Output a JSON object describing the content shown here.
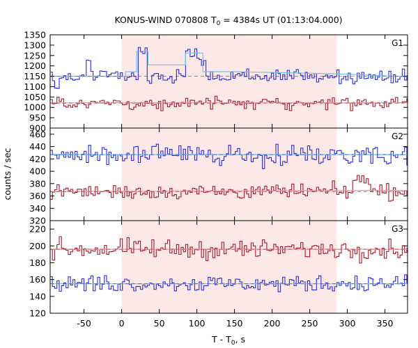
{
  "chart_data": {
    "type": "line",
    "title": {
      "prefix": "KONUS-WIND 070808 T",
      "sub": "0",
      "suffix": " = 4384s UT (01:13:04.000)"
    },
    "xlabel": {
      "prefix": "T - T",
      "sub": "0",
      "suffix": ", s"
    },
    "ylabel": "counts / sec",
    "xlim": [
      -95,
      380
    ],
    "xticks": [
      "-50",
      "0",
      "50",
      "100",
      "150",
      "200",
      "250",
      "300",
      "350"
    ],
    "highlight_interval": [
      0,
      286
    ],
    "highlight_color": "#fde8e8",
    "bin_width": 3,
    "panels": [
      {
        "label": "G1",
        "ylim": [
          900,
          1350
        ],
        "yticks": [
          "900",
          "950",
          "1000",
          "1050",
          "1100",
          "1150",
          "1200",
          "1250",
          "1300",
          "1350"
        ],
        "series": [
          {
            "color": "#2b2bd6",
            "background": 1150,
            "amplitude": 30,
            "features": [
              {
                "x": [
                  -48,
                  -41
                ],
                "y": 1225
              },
              {
                "x": [
                  22,
                  34
                ],
                "y": 1285
              },
              {
                "x": [
                  85,
                  100
                ],
                "y": 1270
              },
              {
                "x": [
                  100,
                  112
                ],
                "y": 1235
              },
              {
                "x": [
                  -90,
                  -84
                ],
                "y": 1100
              }
            ],
            "fit": [
              [
                -95,
                1150
              ],
              [
                5,
                1150
              ],
              [
                5,
                1172
              ],
              [
                20,
                1172
              ],
              [
                20,
                1270
              ],
              [
                35,
                1270
              ],
              [
                35,
                1205
              ],
              [
                85,
                1205
              ],
              [
                85,
                1262
              ],
              [
                108,
                1262
              ],
              [
                108,
                1172
              ],
              [
                150,
                1172
              ],
              [
                285,
                1162
              ],
              [
                380,
                1148
              ]
            ]
          },
          {
            "color": "#a01b2b",
            "background": 1020,
            "amplitude": 22,
            "features": [],
            "fit": [
              [
                -95,
                1022
              ],
              [
                380,
                1022
              ]
            ]
          }
        ]
      },
      {
        "label": "G2",
        "ylim": [
          320,
          470
        ],
        "yticks": [
          "320",
          "340",
          "360",
          "380",
          "400",
          "420",
          "440",
          "460"
        ],
        "series": [
          {
            "color": "#2b2bd6",
            "background": 427,
            "amplitude": 14,
            "features": [],
            "fit": [
              [
                -95,
                427
              ],
              [
                380,
                427
              ]
            ]
          },
          {
            "color": "#a01b2b",
            "background": 367,
            "amplitude": 10,
            "features": [
              {
                "x": [
                  305,
                  330
                ],
                "y": 385
              }
            ],
            "fit": [
              [
                -95,
                367
              ],
              [
                380,
                369
              ]
            ]
          }
        ]
      },
      {
        "label": "G3",
        "ylim": [
          120,
          230
        ],
        "yticks": [
          "120",
          "140",
          "160",
          "180",
          "200",
          "220"
        ],
        "series": [
          {
            "color": "#a01b2b",
            "background": 196,
            "amplitude": 9,
            "features": [],
            "fit": [
              [
                -95,
                196
              ],
              [
                380,
                196
              ]
            ]
          },
          {
            "color": "#2b2bd6",
            "background": 155,
            "amplitude": 8,
            "features": [],
            "fit": [
              [
                -95,
                155
              ],
              [
                380,
                155
              ]
            ]
          }
        ]
      }
    ],
    "fit_colors": {
      "blue": "#6ec0ea",
      "red": "#e890a0"
    }
  }
}
